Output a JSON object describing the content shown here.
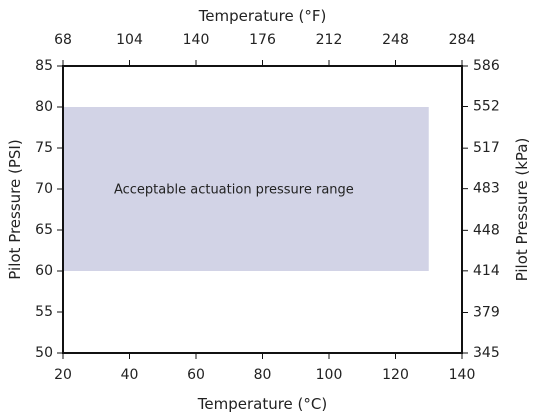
{
  "chart_data": {
    "type": "area",
    "x_bottom": {
      "label": "Temperature (°C)",
      "range": [
        20,
        140
      ],
      "ticks": [
        20,
        40,
        60,
        80,
        100,
        120,
        140
      ]
    },
    "x_top": {
      "label": "Temperature (°F)",
      "range": [
        68,
        284
      ],
      "ticks": [
        68,
        104,
        140,
        176,
        212,
        248,
        284
      ]
    },
    "y_left": {
      "label": "Pilot Pressure (PSI)",
      "range": [
        50,
        85
      ],
      "ticks": [
        50,
        55,
        60,
        65,
        70,
        75,
        80,
        85
      ]
    },
    "y_right": {
      "label": "Pilot Pressure (kPa)",
      "range": [
        345,
        586
      ],
      "ticks": [
        345,
        379,
        414,
        448,
        483,
        517,
        552,
        586
      ]
    },
    "regions": [
      {
        "label": "Acceptable actuation pressure range",
        "x_range": [
          20,
          130
        ],
        "y_range": [
          60,
          80
        ],
        "color": "#d2d3e6"
      }
    ],
    "grid": false
  }
}
